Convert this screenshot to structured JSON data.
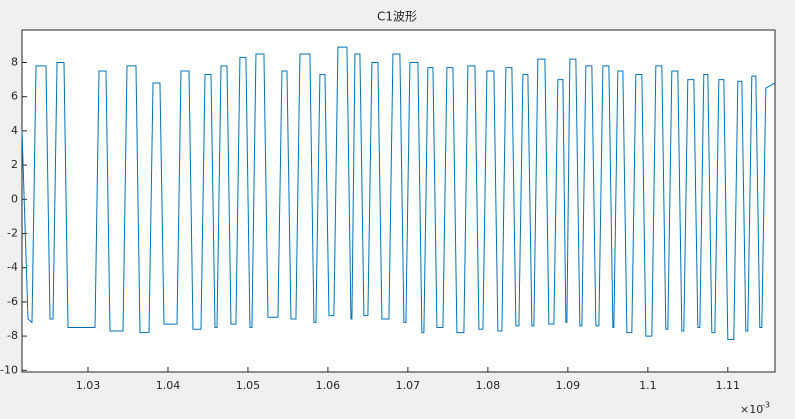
{
  "chart_data": {
    "type": "line",
    "title": "C1波形",
    "x_exponent_base": "×10",
    "x_exponent_power": "-3",
    "xlim": [
      1.02175,
      1.1159
    ],
    "ylim": [
      -10.1,
      9.9
    ],
    "xticks": [
      1.03,
      1.04,
      1.05,
      1.06,
      1.07,
      1.08,
      1.09,
      1.1,
      1.11
    ],
    "yticks": [
      -10,
      -8,
      -6,
      -4,
      -2,
      0,
      2,
      4,
      6,
      8
    ],
    "grid": false,
    "x": [
      1.02175,
      1.0225,
      1.023,
      1.0235,
      1.02475,
      1.02525,
      1.02563,
      1.02613,
      1.027,
      1.0275,
      1.03088,
      1.03138,
      1.03225,
      1.03275,
      1.03438,
      1.03488,
      1.036,
      1.0365,
      1.03763,
      1.03813,
      1.039,
      1.0395,
      1.04113,
      1.04163,
      1.04263,
      1.04313,
      1.04413,
      1.04463,
      1.04538,
      1.04588,
      1.04613,
      1.04663,
      1.04738,
      1.04788,
      1.0485,
      1.049,
      1.04975,
      1.05025,
      1.0505,
      1.051,
      1.052,
      1.0525,
      1.05375,
      1.05425,
      1.05488,
      1.05538,
      1.056,
      1.0565,
      1.05775,
      1.05825,
      1.0585,
      1.059,
      1.05963,
      1.06013,
      1.06075,
      1.06125,
      1.06238,
      1.06288,
      1.063,
      1.06338,
      1.064,
      1.0645,
      1.065,
      1.0655,
      1.06625,
      1.06675,
      1.06763,
      1.06813,
      1.069,
      1.0695,
      1.06975,
      1.07025,
      1.07125,
      1.07175,
      1.072,
      1.0725,
      1.07313,
      1.07363,
      1.07438,
      1.07488,
      1.07563,
      1.07613,
      1.077,
      1.0775,
      1.07838,
      1.07888,
      1.07938,
      1.07988,
      1.08075,
      1.08125,
      1.08175,
      1.08225,
      1.083,
      1.0835,
      1.08388,
      1.08438,
      1.085,
      1.0855,
      1.08575,
      1.08625,
      1.08713,
      1.08763,
      1.08825,
      1.08875,
      1.08938,
      1.08975,
      1.08988,
      1.09025,
      1.091,
      1.0915,
      1.09175,
      1.09225,
      1.093,
      1.0935,
      1.09388,
      1.09438,
      1.09513,
      1.09563,
      1.09575,
      1.09625,
      1.09688,
      1.09738,
      1.098,
      1.0985,
      1.09925,
      1.09975,
      1.1005,
      1.101,
      1.10175,
      1.10225,
      1.1025,
      1.103,
      1.10375,
      1.10425,
      1.1045,
      1.105,
      1.10575,
      1.10625,
      1.1065,
      1.107,
      1.1075,
      1.108,
      1.10838,
      1.10888,
      1.1095,
      1.11,
      1.11075,
      1.11125,
      1.11175,
      1.11225,
      1.1125,
      1.113,
      1.1135,
      1.114,
      1.11425,
      1.11475,
      1.11588
    ],
    "series": [
      {
        "color": "#0072bd",
        "values": [
          4,
          -7,
          -7.2,
          7.8,
          7.8,
          -7,
          -7,
          8,
          8,
          -7.5,
          -7.5,
          7.5,
          7.5,
          -7.7,
          -7.7,
          7.8,
          7.8,
          -7.8,
          -7.8,
          6.8,
          6.8,
          -7.3,
          -7.3,
          7.5,
          7.5,
          -7.6,
          -7.6,
          7.3,
          7.3,
          -7.5,
          -7.5,
          7.8,
          7.8,
          -7.3,
          -7.3,
          8.3,
          8.3,
          -7.5,
          -7.5,
          8.5,
          8.5,
          -6.9,
          -6.9,
          7.5,
          7.5,
          -7,
          -7,
          8.5,
          8.5,
          -7.2,
          -7.2,
          7.3,
          7.3,
          -6.8,
          -6.8,
          8.9,
          8.9,
          -7,
          -7,
          8.5,
          8.5,
          -6.8,
          -6.8,
          8,
          8,
          -7,
          -7,
          8.5,
          8.5,
          -7.2,
          -7.2,
          8,
          8,
          -7.8,
          -7.8,
          7.7,
          7.7,
          -7.5,
          -7.5,
          7.7,
          7.7,
          -7.8,
          -7.8,
          7.8,
          7.8,
          -7.6,
          -7.6,
          7.5,
          7.5,
          -7.7,
          -7.7,
          7.7,
          7.7,
          -7.4,
          -7.4,
          7.3,
          7.3,
          -7.4,
          -7.4,
          8.2,
          8.2,
          -7.3,
          -7.3,
          7,
          7,
          -7.2,
          -7.2,
          8.2,
          8.2,
          -7.4,
          -7.4,
          7.8,
          7.8,
          -7.4,
          -7.4,
          7.8,
          7.8,
          -7.5,
          -7.5,
          7.5,
          7.5,
          -7.8,
          -7.8,
          7.3,
          7.3,
          -8,
          -8,
          7.8,
          7.8,
          -7.6,
          -7.6,
          7.5,
          7.5,
          -7.7,
          -7.7,
          7,
          7,
          -7.5,
          -7.5,
          7.3,
          7.3,
          -7.8,
          -7.8,
          7,
          7,
          -8.2,
          -8.2,
          6.9,
          6.9,
          -7.7,
          -7.7,
          7.2,
          7.2,
          -7.5,
          -7.5,
          6.5,
          6.8
        ]
      }
    ]
  }
}
